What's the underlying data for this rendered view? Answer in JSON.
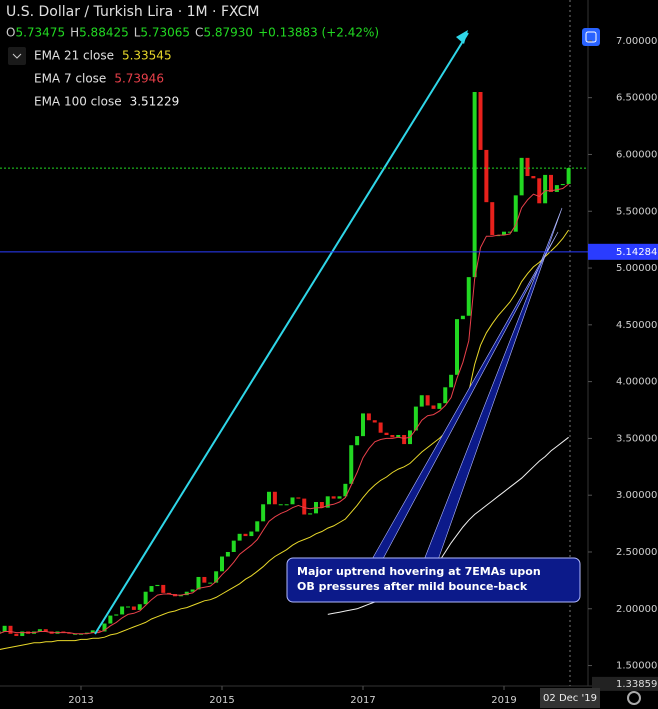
{
  "chart_data": {
    "type": "candlestick",
    "title": "U.S. Dollar / Turkish Lira · 1M · FXCM",
    "ohlc": [
      {
        "label": "O",
        "value": "5.73475"
      },
      {
        "label": "H",
        "value": "5.88425"
      },
      {
        "label": "L",
        "value": "5.73065"
      },
      {
        "label": "C",
        "value": "5.87930"
      },
      {
        "label": "",
        "value": "+0.13883 (+2.42%)"
      }
    ],
    "categories": [
      null,
      null,
      null,
      null,
      null,
      null,
      null,
      null,
      null,
      null,
      null,
      null,
      null,
      null,
      "2013",
      null,
      null,
      null,
      null,
      null,
      null,
      null,
      null,
      null,
      null,
      null,
      null,
      null,
      null,
      null,
      null,
      null,
      null,
      null,
      null,
      null,
      null,
      null,
      "2015",
      null,
      null,
      null,
      null,
      null,
      null,
      null,
      null,
      null,
      null,
      null,
      null,
      null,
      null,
      null,
      null,
      null,
      null,
      null,
      null,
      null,
      null,
      null,
      "2017",
      null,
      null,
      null,
      null,
      null,
      null,
      null,
      null,
      null,
      null,
      null,
      null,
      null,
      null,
      null,
      null,
      null,
      null,
      null,
      null,
      null,
      null,
      null,
      "2019",
      null,
      null,
      null,
      null,
      null,
      null,
      null,
      null,
      null,
      null,
      null
    ],
    "close": {
      "up_color": "#22d822",
      "down_color": "#e8211c",
      "values": [
        1.8,
        1.85,
        1.78,
        1.76,
        1.8,
        1.78,
        1.8,
        1.82,
        1.8,
        1.78,
        1.8,
        1.79,
        1.78,
        1.78,
        1.78,
        1.79,
        1.81,
        1.8,
        1.87,
        1.94,
        1.95,
        2.02,
        2.02,
        1.99,
        2.04,
        2.15,
        2.2,
        2.21,
        2.14,
        2.13,
        2.11,
        2.12,
        2.15,
        2.17,
        2.28,
        2.23,
        2.23,
        2.33,
        2.46,
        2.5,
        2.6,
        2.66,
        2.64,
        2.68,
        2.77,
        2.92,
        3.03,
        2.92,
        2.92,
        2.92,
        2.98,
        2.97,
        2.83,
        2.84,
        2.94,
        2.89,
        2.99,
        2.97,
        2.99,
        3.1,
        3.44,
        3.52,
        3.72,
        3.66,
        3.64,
        3.55,
        3.53,
        3.51,
        3.53,
        3.45,
        3.57,
        3.78,
        3.88,
        3.79,
        3.76,
        3.81,
        3.95,
        4.06,
        4.55,
        4.58,
        4.92,
        6.55,
        6.04,
        5.58,
        5.29,
        5.29,
        5.32,
        5.32,
        5.64,
        5.97,
        5.81,
        5.79,
        5.57,
        5.82,
        5.67,
        5.73,
        5.74,
        5.88
      ]
    },
    "series": [
      {
        "name": "EMA 21 close",
        "legend_value": "5.33545",
        "color": "#e8d82a",
        "values": [
          1.64,
          1.65,
          1.66,
          1.67,
          1.68,
          1.69,
          1.7,
          1.7,
          1.71,
          1.71,
          1.72,
          1.72,
          1.72,
          1.72,
          1.73,
          1.73,
          1.74,
          1.74,
          1.75,
          1.77,
          1.78,
          1.8,
          1.82,
          1.84,
          1.86,
          1.88,
          1.91,
          1.93,
          1.95,
          1.97,
          1.98,
          2.0,
          2.01,
          2.03,
          2.05,
          2.07,
          2.08,
          2.1,
          2.13,
          2.16,
          2.19,
          2.22,
          2.26,
          2.29,
          2.33,
          2.37,
          2.42,
          2.46,
          2.49,
          2.52,
          2.56,
          2.59,
          2.61,
          2.63,
          2.66,
          2.68,
          2.71,
          2.73,
          2.76,
          2.79,
          2.85,
          2.91,
          2.98,
          3.04,
          3.09,
          3.13,
          3.16,
          3.2,
          3.23,
          3.25,
          3.28,
          3.33,
          3.38,
          3.42,
          3.46,
          3.5,
          3.55,
          3.6,
          3.7,
          3.79,
          3.91,
          4.15,
          4.32,
          4.43,
          4.51,
          4.58,
          4.64,
          4.7,
          4.78,
          4.88,
          4.95,
          5.01,
          5.05,
          5.1,
          5.15,
          5.2,
          5.26,
          5.335
        ]
      },
      {
        "name": "EMA 7 close",
        "legend_value": "5.73946",
        "color": "#e8404a",
        "values": [
          1.78,
          1.8,
          1.8,
          1.79,
          1.79,
          1.79,
          1.79,
          1.8,
          1.8,
          1.79,
          1.79,
          1.79,
          1.79,
          1.78,
          1.78,
          1.78,
          1.79,
          1.79,
          1.81,
          1.85,
          1.88,
          1.92,
          1.95,
          1.96,
          1.98,
          2.03,
          2.08,
          2.12,
          2.13,
          2.13,
          2.12,
          2.12,
          2.13,
          2.14,
          2.18,
          2.19,
          2.2,
          2.24,
          2.3,
          2.35,
          2.41,
          2.48,
          2.52,
          2.56,
          2.61,
          2.69,
          2.77,
          2.81,
          2.84,
          2.86,
          2.89,
          2.91,
          2.89,
          2.88,
          2.89,
          2.89,
          2.91,
          2.92,
          2.94,
          2.98,
          3.09,
          3.2,
          3.33,
          3.41,
          3.47,
          3.49,
          3.5,
          3.5,
          3.51,
          3.5,
          3.51,
          3.58,
          3.66,
          3.7,
          3.71,
          3.74,
          3.79,
          3.86,
          4.03,
          4.17,
          4.36,
          4.9,
          5.18,
          5.28,
          5.28,
          5.29,
          5.29,
          5.3,
          5.38,
          5.53,
          5.6,
          5.65,
          5.63,
          5.68,
          5.68,
          5.69,
          5.7,
          5.74
        ]
      },
      {
        "name": "EMA 100 close",
        "legend_value": "3.51229",
        "color": "#f0f0f0",
        "values": [
          null,
          null,
          null,
          null,
          null,
          null,
          null,
          null,
          null,
          null,
          null,
          null,
          null,
          null,
          null,
          null,
          null,
          null,
          null,
          null,
          null,
          null,
          null,
          null,
          null,
          null,
          null,
          null,
          null,
          null,
          null,
          null,
          null,
          null,
          null,
          null,
          null,
          null,
          null,
          null,
          null,
          null,
          null,
          null,
          null,
          null,
          null,
          null,
          null,
          null,
          null,
          null,
          null,
          null,
          null,
          null,
          1.95,
          1.96,
          1.97,
          1.98,
          1.99,
          2.0,
          2.02,
          2.04,
          2.06,
          2.08,
          2.1,
          2.12,
          2.14,
          2.16,
          2.18,
          2.21,
          2.24,
          2.28,
          2.34,
          2.42,
          2.5,
          2.58,
          2.65,
          2.72,
          2.78,
          2.83,
          2.87,
          2.91,
          2.95,
          2.99,
          3.03,
          3.07,
          3.11,
          3.15,
          3.2,
          3.25,
          3.3,
          3.34,
          3.39,
          3.43,
          3.47,
          3.51
        ]
      }
    ],
    "hline": 5.14284,
    "bottom_price": 1.33859,
    "crosshair_label": "02 Dec '19",
    "ylim": [
      1.32,
      7.36
    ],
    "yticks": [
      {
        "value": 1.5,
        "label": "1.50000"
      },
      {
        "value": 2,
        "label": "2.00000"
      },
      {
        "value": 2.5,
        "label": "2.50000"
      },
      {
        "value": 3,
        "label": "3.00000"
      },
      {
        "value": 3.5,
        "label": "3.50000"
      },
      {
        "value": 4,
        "label": "4.00000"
      },
      {
        "value": 4.5,
        "label": "4.50000"
      },
      {
        "value": 5,
        "label": "5.00000"
      },
      {
        "value": 5.5,
        "label": "5.50000"
      },
      {
        "value": 6,
        "label": "6.00000"
      },
      {
        "value": 6.5,
        "label": "6.50000"
      },
      {
        "value": 7,
        "label": "7.00000"
      }
    ],
    "annotation": [
      "Major uptrend hovering at 7EMAs upon",
      "OB pressures after mild bounce-back"
    ]
  }
}
